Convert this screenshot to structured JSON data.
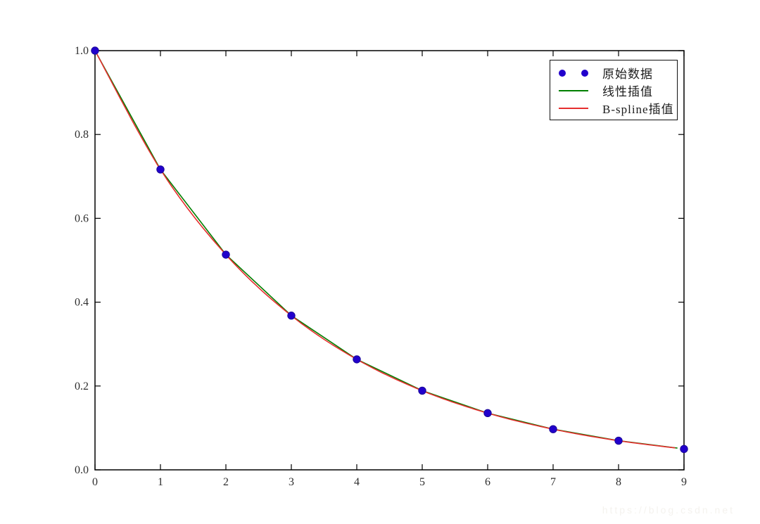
{
  "figure": {
    "background": "#ffffff",
    "spine_color": "#000000",
    "tick_color": "#000000",
    "tick_label_color": "#2e2e2e"
  },
  "chart_data": {
    "type": "line",
    "title": "",
    "xlabel": "",
    "ylabel": "",
    "xlim": [
      0,
      9
    ],
    "ylim": [
      0.0,
      1.0
    ],
    "grid": false,
    "legend_position": "upper right",
    "x_ticks": [
      0,
      1,
      2,
      3,
      4,
      5,
      6,
      7,
      8,
      9
    ],
    "x_tick_labels": [
      "0",
      "1",
      "2",
      "3",
      "4",
      "5",
      "6",
      "7",
      "8",
      "9"
    ],
    "y_ticks": [
      0.0,
      0.2,
      0.4,
      0.6,
      0.8,
      1.0
    ],
    "y_tick_labels": [
      "0.0",
      "0.2",
      "0.4",
      "0.6",
      "0.8",
      "1.0"
    ],
    "series": [
      {
        "name": "原始数据",
        "style": "scatter",
        "marker": "circle",
        "color": "#2200cc",
        "x": [
          0,
          1,
          2,
          3,
          4,
          5,
          6,
          7,
          8,
          9
        ],
        "y": [
          1.0,
          0.7165,
          0.5134,
          0.3679,
          0.2636,
          0.1889,
          0.1353,
          0.097,
          0.0695,
          0.0498
        ]
      },
      {
        "name": "线性插值",
        "style": "line",
        "interpolation": "linear",
        "color": "#007f00",
        "x_end": 8.9
      },
      {
        "name": "B-spline插值",
        "style": "line",
        "interpolation": "b-spline",
        "color": "#e62e2e",
        "x_end": 8.9
      }
    ]
  },
  "legend": {
    "items": [
      {
        "label": "原始数据",
        "marker": "dots",
        "color": "#2200cc"
      },
      {
        "label": "线性插值",
        "marker": "line",
        "color": "#007f00"
      },
      {
        "label": "B-spline插值",
        "marker": "line",
        "color": "#e62e2e"
      }
    ]
  },
  "watermark": {
    "text": "https://blog.csdn.net"
  }
}
